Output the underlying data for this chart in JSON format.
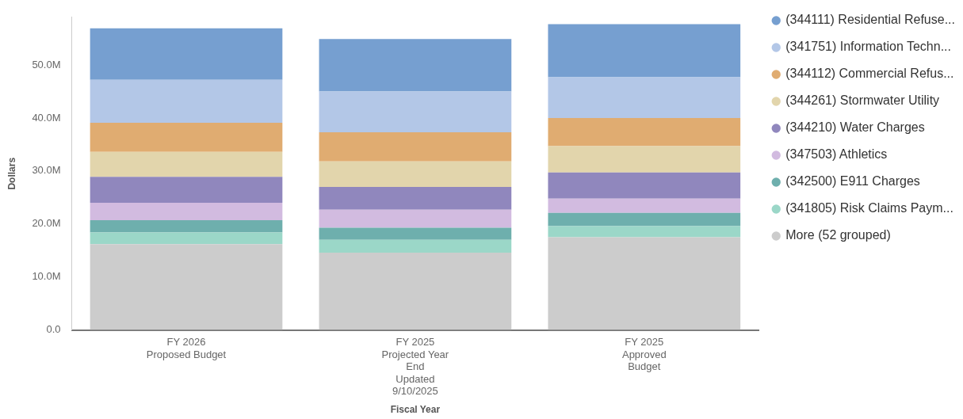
{
  "chart_data": {
    "type": "bar",
    "stacked": true,
    "xlabel": "Fiscal Year",
    "ylabel": "Dollars",
    "categories": [
      "FY 2026\nProposed Budget",
      "FY 2025\nProjected Year\nEnd\nUpdated\n9/10/2025",
      "FY 2025\nApproved\nBudget"
    ],
    "series": [
      {
        "name": "More (52 grouped)",
        "color": "#cccccc",
        "values": [
          16.2,
          14.6,
          17.5
        ]
      },
      {
        "name": "(341805) Risk Claims Paym...",
        "color": "#9bd7c8",
        "values": [
          2.2,
          2.4,
          2.1
        ]
      },
      {
        "name": "(342500) E911 Charges",
        "color": "#6eafad",
        "values": [
          2.3,
          2.3,
          2.5
        ]
      },
      {
        "name": "(347503) Athletics",
        "color": "#d2bbe0",
        "values": [
          3.3,
          3.4,
          2.7
        ]
      },
      {
        "name": "(344210) Water Charges",
        "color": "#9087bd",
        "values": [
          4.9,
          4.3,
          4.9
        ]
      },
      {
        "name": "(344261) Stormwater Utility",
        "color": "#e2d5ac",
        "values": [
          4.7,
          4.8,
          5.0
        ]
      },
      {
        "name": "(344112) Commercial Refus...",
        "color": "#e0ac71",
        "values": [
          5.5,
          5.5,
          5.3
        ]
      },
      {
        "name": "(341751) Information Techn...",
        "color": "#b3c7e7",
        "values": [
          8.1,
          7.7,
          7.7
        ]
      },
      {
        "name": "(344111) Residential Refuse...",
        "color": "#769fd0",
        "values": [
          9.7,
          9.9,
          10.0
        ]
      }
    ],
    "ylim": [
      0,
      59
    ],
    "yticks": [
      {
        "value": 0,
        "label": "0.0"
      },
      {
        "value": 10,
        "label": "10.0M"
      },
      {
        "value": 20,
        "label": "20.0M"
      },
      {
        "value": 30,
        "label": "30.0M"
      },
      {
        "value": 40,
        "label": "40.0M"
      },
      {
        "value": 50,
        "label": "50.0M"
      }
    ],
    "grid": false,
    "legend": "right"
  }
}
